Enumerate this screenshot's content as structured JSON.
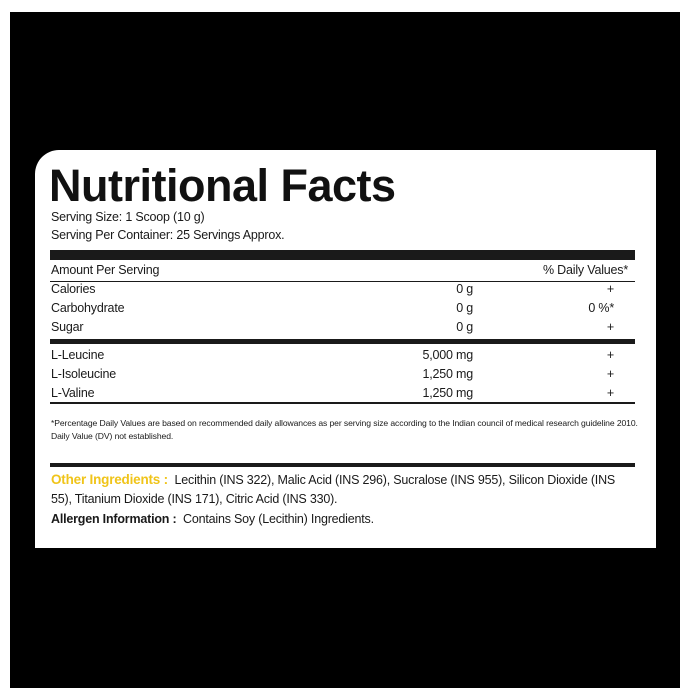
{
  "label": {
    "title": "Nutritional Facts",
    "serving_size": "Serving Size: 1 Scoop (10 g)",
    "servings_per_container": "Serving Per Container: 25 Servings Approx.",
    "header": {
      "amount": "Amount Per Serving",
      "daily_value": "% Daily Values*"
    },
    "macros": [
      [
        "Calories",
        "0 g",
        "+"
      ],
      [
        "Carbohydrate",
        "0 g",
        "0 %*"
      ],
      [
        "Sugar",
        "0 g",
        "+"
      ]
    ],
    "amino_acids": [
      [
        "L-Leucine",
        "5,000 mg",
        "+"
      ],
      [
        "L-Isoleucine",
        "1,250 mg",
        "+"
      ],
      [
        "L-Valine",
        "1,250 mg",
        "+"
      ]
    ],
    "footnote": "*Percentage Daily Values are based on recommended daily allowances as per serving size according to the Indian council of medical research guideline 2010. Daily Value (DV) not established.",
    "other_ingredients_label": "Other Ingredients :",
    "other_ingredients": "Lecithin (INS 322), Malic Acid (INS 296), Sucralose (INS 955), Silicon Dioxide (INS 55), Titanium Dioxide (INS 171), Citric Acid (INS 330).",
    "allergen_label": "Allergen Information :",
    "allergen": "Contains Soy (Lecithin) Ingredients."
  }
}
